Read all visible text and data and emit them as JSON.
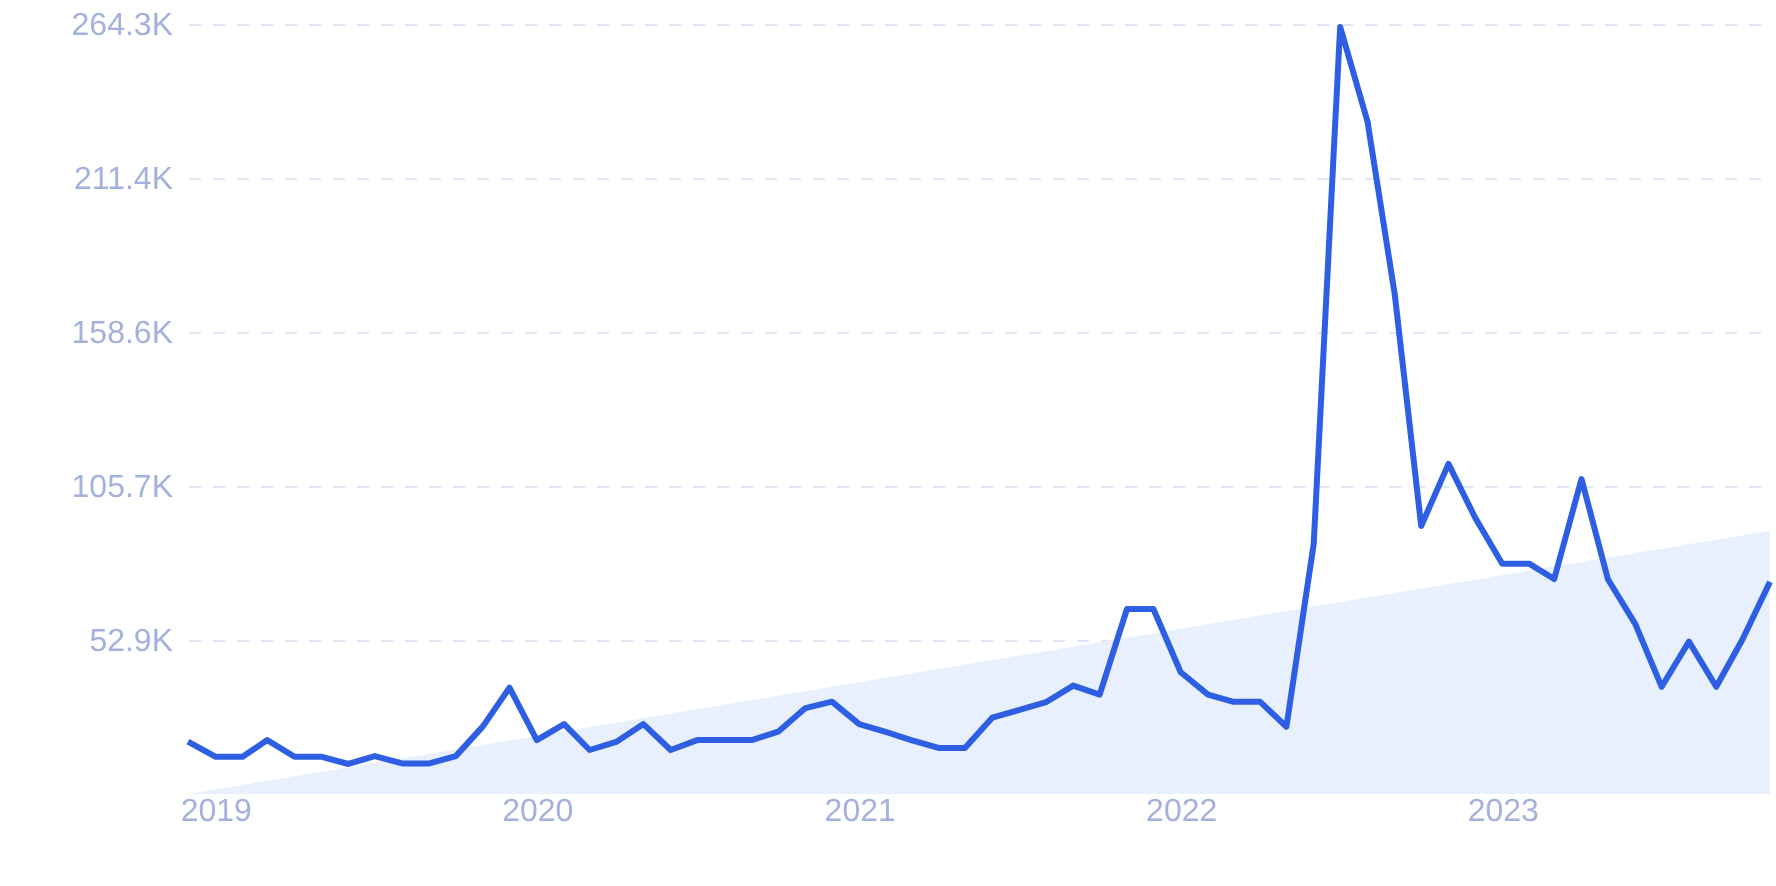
{
  "chart_data": {
    "type": "line",
    "x": [
      "2018-12",
      "2019-01",
      "2019-02",
      "2019-03",
      "2019-04",
      "2019-05",
      "2019-06",
      "2019-07",
      "2019-08",
      "2019-09",
      "2019-10",
      "2019-11",
      "2019-12",
      "2020-01",
      "2020-02",
      "2020-03",
      "2020-04",
      "2020-05",
      "2020-06",
      "2020-07",
      "2020-08",
      "2020-09",
      "2020-10",
      "2020-11",
      "2020-12",
      "2021-01",
      "2021-02",
      "2021-03",
      "2021-04",
      "2021-05",
      "2021-06",
      "2021-07",
      "2021-08",
      "2021-09",
      "2021-10",
      "2021-11",
      "2021-12",
      "2022-01",
      "2022-02",
      "2022-03",
      "2022-04",
      "2022-05",
      "2022-06",
      "2022-07",
      "2022-08",
      "2022-09",
      "2022-10",
      "2022-11",
      "2022-12",
      "2023-01",
      "2023-02",
      "2023-03",
      "2023-04",
      "2023-05",
      "2023-06",
      "2023-07",
      "2023-08",
      "2023-09",
      "2023-10",
      "2023-11"
    ],
    "series": [
      {
        "type": "area",
        "x": [
          "2018-12",
          "2023-11"
        ],
        "values": [
          0,
          90.4
        ],
        "color": "#e8f0fd"
      },
      {
        "color": "#2e5fe3",
        "values": [
          18.0,
          12.8,
          12.8,
          18.5,
          12.8,
          12.8,
          10.3,
          13.0,
          10.5,
          10.5,
          13.0,
          23.3,
          36.5,
          18.5,
          24.0,
          15.1,
          18.0,
          24.0,
          15.1,
          18.5,
          18.5,
          18.5,
          21.4,
          29.5,
          31.7,
          24.0,
          21.2,
          18.5,
          15.8,
          15.8,
          26.2,
          28.8,
          31.5,
          37.2,
          34.1,
          63.5,
          63.5,
          41.8,
          34.1,
          31.7,
          31.7,
          23.1,
          85.9,
          263.3,
          230.9,
          171.5,
          92.0,
          113.3,
          95.0,
          79.0,
          79.0,
          73.8,
          108.1,
          73.7,
          58.4,
          36.8,
          52.3,
          36.8,
          53.2,
          72.8
        ]
      }
    ],
    "xlim": [
      "2018-12",
      "2023-11"
    ],
    "xticks": [
      {
        "value": "2019-01",
        "label": "2019"
      },
      {
        "value": "2020-01",
        "label": "2020"
      },
      {
        "value": "2021-01",
        "label": "2021"
      },
      {
        "value": "2022-01",
        "label": "2022"
      },
      {
        "value": "2023-01",
        "label": "2023"
      }
    ],
    "ylim": [
      0,
      264.3
    ],
    "yticks": [
      {
        "value": 52.9,
        "label": "52.9K"
      },
      {
        "value": 105.7,
        "label": "105.7K"
      },
      {
        "value": 158.6,
        "label": "158.6K"
      },
      {
        "value": 211.4,
        "label": "211.4K"
      },
      {
        "value": 264.3,
        "label": "264.3K"
      }
    ],
    "grid": "y"
  }
}
